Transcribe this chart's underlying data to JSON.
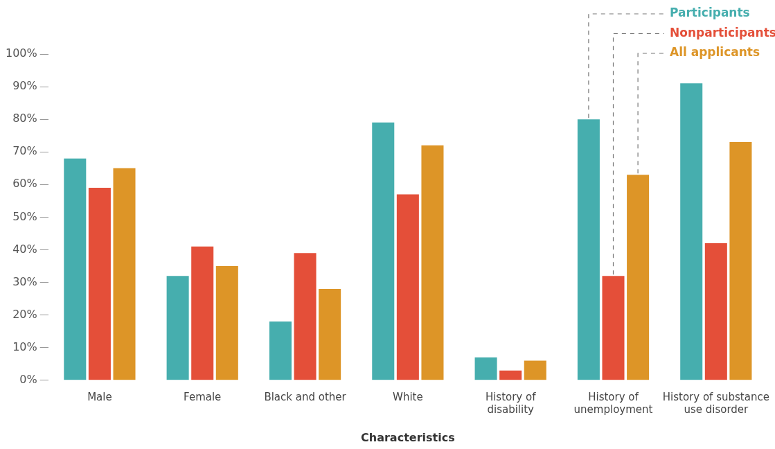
{
  "chart_data": {
    "type": "bar",
    "xlabel": "Characteristics",
    "categories": [
      "Male",
      "Female",
      "Black and other",
      "White",
      "History of disability",
      "History of unemployment",
      "History of substance use disorder"
    ],
    "series": [
      {
        "name": "Participants",
        "color": "#46aeae",
        "values": [
          68,
          32,
          18,
          79,
          7,
          80,
          91
        ]
      },
      {
        "name": "Nonparticipants",
        "color": "#e44f39",
        "values": [
          59,
          41,
          39,
          57,
          3,
          32,
          42
        ]
      },
      {
        "name": "All applicants",
        "color": "#dd9527",
        "values": [
          65,
          35,
          28,
          72,
          6,
          63,
          73
        ]
      }
    ],
    "ylim": [
      0,
      100
    ],
    "yticks": [
      {
        "value": 0,
        "label": "0%"
      },
      {
        "value": 10,
        "label": "10%"
      },
      {
        "value": 20,
        "label": "20%"
      },
      {
        "value": 30,
        "label": "30%"
      },
      {
        "value": 40,
        "label": "40%"
      },
      {
        "value": 50,
        "label": "50%"
      },
      {
        "value": 60,
        "label": "60%"
      },
      {
        "value": 70,
        "label": "70%"
      },
      {
        "value": 80,
        "label": "80%"
      },
      {
        "value": 90,
        "label": "90%"
      },
      {
        "value": 100,
        "label": "100%"
      }
    ],
    "grid": false,
    "legend": "top right"
  }
}
